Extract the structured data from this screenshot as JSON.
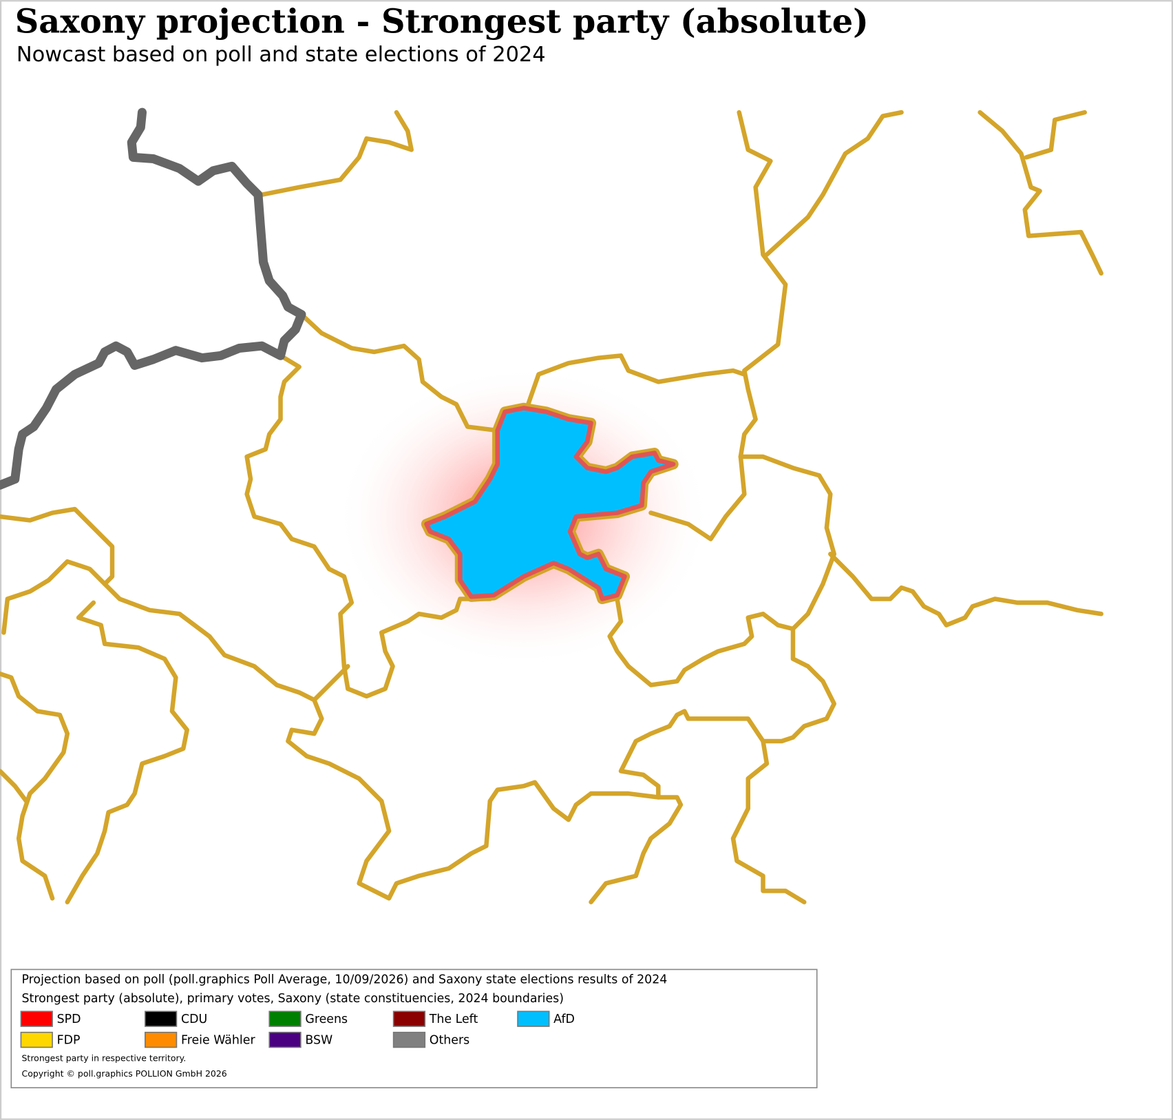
{
  "header": {
    "title": "Saxony projection - Strongest party (absolute)",
    "subtitle": "Nowcast based on poll and state elections of 2024"
  },
  "legend": {
    "lines": [
      "Projection based on poll (poll.graphics Poll Average, 10/09/2026) and Saxony state elections results of 2024",
      "Strongest party (absolute), primary votes, Saxony (state constituencies, 2024 boundaries)"
    ],
    "items": [
      {
        "name": "SPD",
        "color": "#ff0000"
      },
      {
        "name": "CDU",
        "color": "#000000"
      },
      {
        "name": "Greens",
        "color": "#008000"
      },
      {
        "name": "The Left",
        "color": "#8b0000"
      },
      {
        "name": "AfD",
        "color": "#00bfff"
      },
      {
        "name": "FDP",
        "color": "#ffd700"
      },
      {
        "name": "Freie Wähler",
        "color": "#ff8c00"
      },
      {
        "name": "BSW",
        "color": "#4b0082"
      },
      {
        "name": "Others",
        "color": "#808080"
      }
    ],
    "notes": [
      "Strongest party in respective territory.",
      "Copyright © poll.graphics POLLION GmbH 2026"
    ]
  }
}
